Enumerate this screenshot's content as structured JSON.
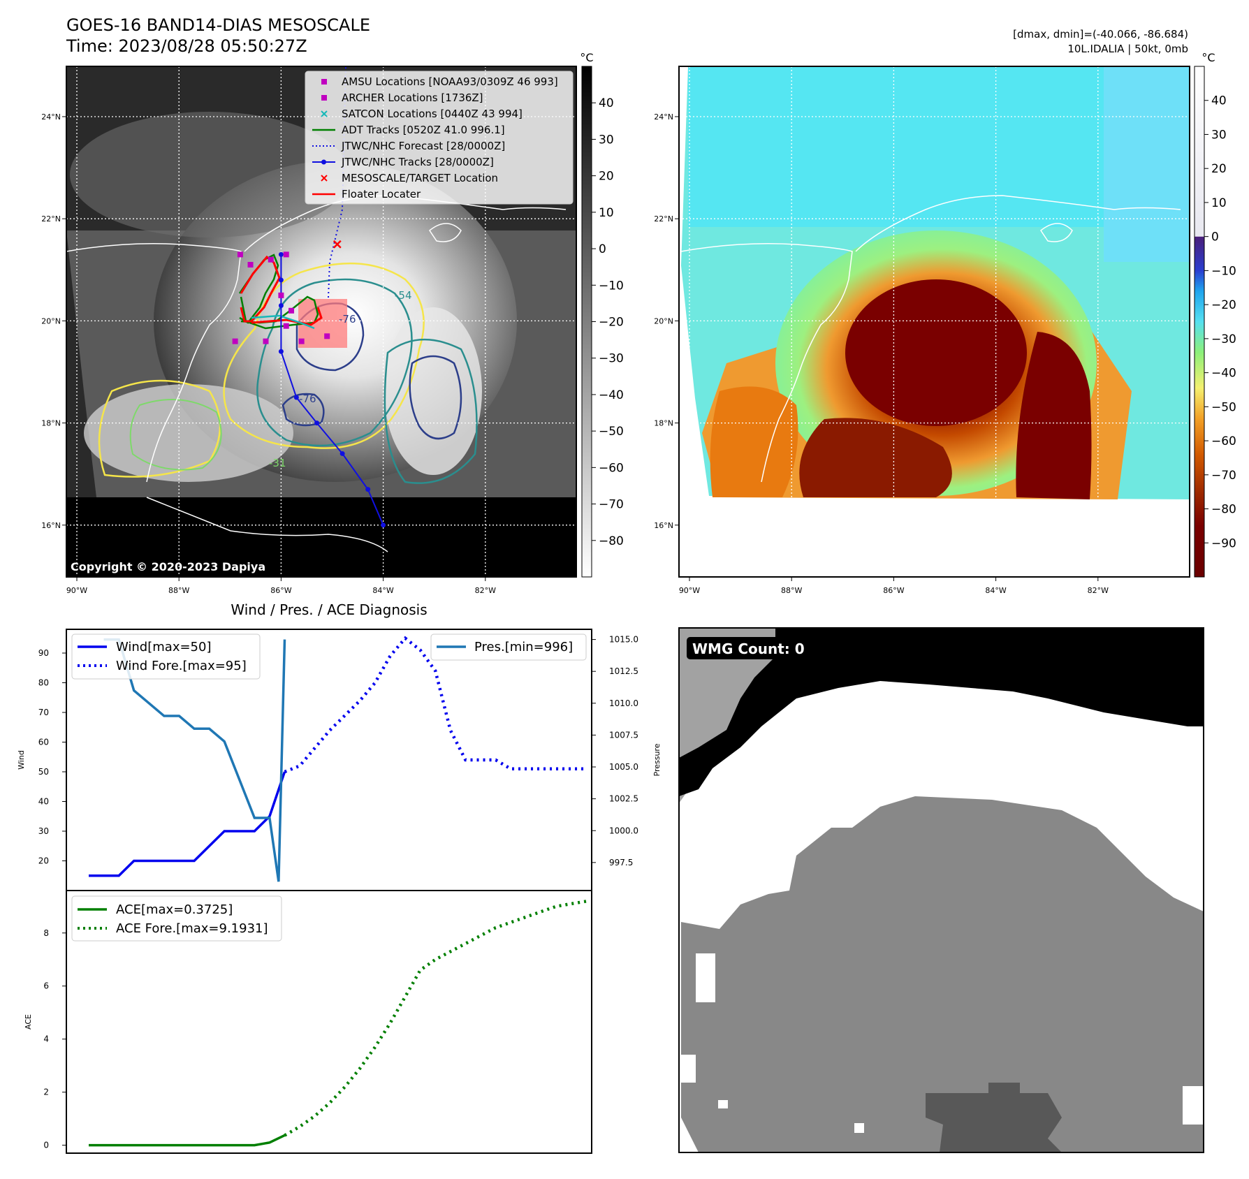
{
  "header": {
    "title": "GOES-16 BAND14-DIAS MESOSCALE",
    "time": "Time: 2023/08/28 05:50:27Z",
    "dmax_dmin": "[dmax, dmin]=(-40.066, -86.684)",
    "storm": "10L.IDALIA | 50kt, 0mb"
  },
  "colors": {
    "wind": "#0000ee",
    "pressure": "#1f77b4",
    "ace": "#007f00",
    "amsu": "#c000c0",
    "satcon": "#17b8b8",
    "target": "#ff0000",
    "jtwc": "#1010e0"
  },
  "chart_data": [
    {
      "id": "ir-map",
      "type": "heatmap",
      "lat_ticks": [
        "24°N",
        "22°N",
        "20°N",
        "18°N",
        "16°N"
      ],
      "lon_ticks": [
        "90°W",
        "88°W",
        "86°W",
        "84°W",
        "82°W"
      ],
      "lat_values": [
        24,
        22,
        20,
        18,
        16
      ],
      "lon_values": [
        -90,
        -88,
        -86,
        -84,
        -82
      ],
      "xlim": [
        -90.2,
        -80.2
      ],
      "ylim": [
        15,
        25
      ],
      "colorbar_unit": "°C",
      "colorbar_ticks": [
        "40",
        "30",
        "20",
        "10",
        "0",
        "−10",
        "−20",
        "−30",
        "−40",
        "−50",
        "−60",
        "−70",
        "−80"
      ],
      "colorbar_values": [
        40,
        30,
        20,
        10,
        0,
        -10,
        -20,
        -30,
        -40,
        -50,
        -60,
        -70,
        -80
      ],
      "colorbar_range": [
        -90,
        50
      ],
      "contour_labels": [
        "-54",
        "-76",
        "-76",
        "-31"
      ],
      "copyright": "Copyright © 2020-2023 Dapiya",
      "legend": [
        {
          "label": "AMSU Locations [NOAA93/0309Z 46 993]",
          "marker": "square",
          "color": "#c000c0"
        },
        {
          "label": "ARCHER Locations [1736Z]",
          "marker": "square",
          "color": "#c000c0"
        },
        {
          "label": "SATCON Locations [0440Z 43 994]",
          "marker": "x",
          "color": "#17b8b8"
        },
        {
          "label": "ADT Tracks [0520Z 41.0 996.1]",
          "marker": "line",
          "color": "#007f00"
        },
        {
          "label": "JTWC/NHC Forecast [28/0000Z]",
          "marker": "dotted",
          "color": "#1010e0"
        },
        {
          "label": "JTWC/NHC Tracks [28/0000Z]",
          "marker": "line-dot",
          "color": "#1010e0"
        },
        {
          "label": "MESOSCALE/TARGET Location",
          "marker": "x",
          "color": "#ff0000"
        },
        {
          "label": "Floater Locater",
          "marker": "line",
          "color": "#ff0000"
        }
      ],
      "jtwc_track": [
        [
          -84.0,
          16.0
        ],
        [
          -84.3,
          16.7
        ],
        [
          -84.8,
          17.4
        ],
        [
          -85.3,
          18.0
        ],
        [
          -85.7,
          18.5
        ],
        [
          -86.0,
          19.4
        ],
        [
          -86.0,
          20.3
        ],
        [
          -86.0,
          20.8
        ],
        [
          -86.0,
          21.3
        ]
      ],
      "jtwc_forecast": [
        [
          -85.9,
          21.3
        ],
        [
          -85.4,
          22.0
        ],
        [
          -84.7,
          24.0
        ],
        [
          -84.8,
          25.0
        ]
      ],
      "target_location": [
        -84.9,
        21.5
      ],
      "amsu_points": [
        [
          -86.8,
          21.3
        ],
        [
          -86.6,
          21.1
        ],
        [
          -85.9,
          21.3
        ],
        [
          -86.2,
          21.2
        ],
        [
          -86.0,
          20.5
        ],
        [
          -85.8,
          20.2
        ],
        [
          -85.9,
          19.9
        ],
        [
          -85.6,
          19.6
        ],
        [
          -86.3,
          19.6
        ],
        [
          -86.9,
          19.6
        ],
        [
          -85.1,
          19.7
        ]
      ]
    },
    {
      "id": "color-map",
      "type": "heatmap",
      "lat_ticks": [
        "24°N",
        "22°N",
        "20°N",
        "18°N",
        "16°N"
      ],
      "lon_ticks": [
        "90°W",
        "88°W",
        "86°W",
        "84°W",
        "82°W"
      ],
      "colorbar_unit": "°C",
      "colorbar_ticks": [
        "40",
        "30",
        "20",
        "10",
        "0",
        "−10",
        "−20",
        "−30",
        "−40",
        "−50",
        "−60",
        "−70",
        "−80",
        "−90"
      ],
      "colorbar_values": [
        40,
        30,
        20,
        10,
        0,
        -10,
        -20,
        -30,
        -40,
        -50,
        -60,
        -70,
        -80,
        -90
      ],
      "colorbar_range": [
        -100,
        50
      ]
    },
    {
      "id": "wind-pres",
      "type": "line",
      "title": "Wind / Pres. / ACE Diagnosis",
      "ylabel_left": "Wind",
      "ylabel_right": "Pressure",
      "ylim_left": [
        10,
        98
      ],
      "ylim_right": [
        995.3,
        1015.8
      ],
      "yticks_left": [
        20,
        30,
        40,
        50,
        60,
        70,
        80,
        90
      ],
      "yticks_right": [
        "997.5",
        "1000.0",
        "1002.5",
        "1005.0",
        "1007.5",
        "1010.0",
        "1012.5",
        "1015.0"
      ],
      "yticks_right_values": [
        997.5,
        1000.0,
        1002.5,
        1005.0,
        1007.5,
        1010.0,
        1012.5,
        1015.0
      ],
      "legend_left": [
        "Wind[max=50]",
        "Wind Fore.[max=95]"
      ],
      "legend_right": [
        "Pres.[min=996]"
      ],
      "x_count": 34,
      "series": [
        {
          "name": "Wind[max=50]",
          "style": "solid",
          "axis": "left",
          "x": [
            0,
            1,
            2,
            3,
            4,
            5,
            6,
            7,
            8,
            9,
            10,
            11,
            12,
            13
          ],
          "values": [
            15,
            15,
            15,
            20,
            20,
            20,
            20,
            20,
            25,
            30,
            30,
            30,
            35,
            50
          ]
        },
        {
          "name": "Wind Fore.[max=95]",
          "style": "dotted",
          "axis": "left",
          "x": [
            13,
            14,
            15,
            16,
            17,
            18,
            19,
            20,
            21,
            22,
            23,
            24,
            25,
            26,
            27,
            28,
            29,
            30,
            31,
            32,
            33
          ],
          "values": [
            50,
            52,
            58,
            64,
            69,
            74,
            80,
            89,
            95,
            91,
            84,
            64,
            54,
            54,
            54,
            51,
            51,
            51,
            51,
            51,
            51
          ]
        },
        {
          "name": "Pres.[min=996]",
          "style": "solid",
          "axis": "right",
          "x": [
            1,
            2,
            3,
            4,
            5,
            6,
            7,
            8,
            9,
            10,
            11,
            12,
            12.6,
            13
          ],
          "values": [
            1015,
            1015,
            1011,
            1010,
            1009,
            1009,
            1008,
            1008,
            1007,
            1004,
            1001,
            1001,
            996,
            1015
          ]
        }
      ]
    },
    {
      "id": "ace",
      "type": "line",
      "ylabel": "ACE",
      "ylim": [
        -0.3,
        9.6
      ],
      "yticks": [
        0,
        2,
        4,
        6,
        8
      ],
      "legend": [
        "ACE[max=0.3725]",
        "ACE Fore.[max=9.1931]"
      ],
      "x_count": 34,
      "series": [
        {
          "name": "ACE[max=0.3725]",
          "style": "solid",
          "x": [
            0,
            1,
            2,
            3,
            4,
            5,
            6,
            7,
            8,
            9,
            10,
            11,
            12,
            13
          ],
          "values": [
            0,
            0,
            0,
            0,
            0,
            0,
            0,
            0,
            0,
            0,
            0,
            0,
            0.1,
            0.3725
          ]
        },
        {
          "name": "ACE Fore.[max=9.1931]",
          "style": "dotted",
          "x": [
            13,
            14,
            15,
            16,
            17,
            18,
            19,
            20,
            21,
            22,
            23,
            24,
            25,
            26,
            27,
            28,
            29,
            30,
            31,
            32,
            33
          ],
          "values": [
            0.37,
            0.7,
            1.1,
            1.6,
            2.2,
            2.9,
            3.7,
            4.6,
            5.6,
            6.6,
            7.0,
            7.3,
            7.6,
            7.9,
            8.2,
            8.4,
            8.6,
            8.8,
            9.0,
            9.1,
            9.1931
          ]
        }
      ]
    },
    {
      "id": "wmg",
      "type": "heatmap",
      "label": "WMG Count: 0"
    }
  ]
}
